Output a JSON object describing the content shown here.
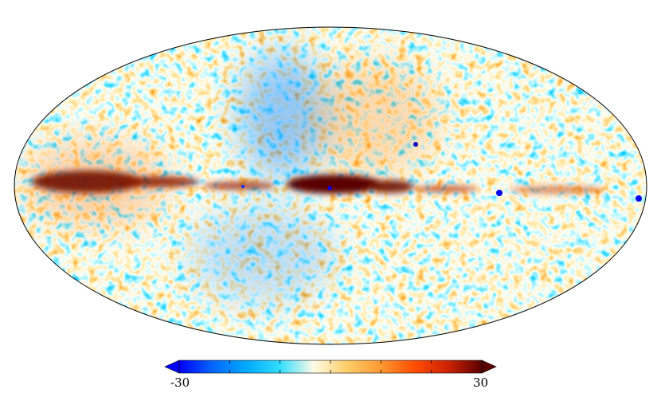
{
  "map": {
    "projection": "mollweide",
    "colorbar": {
      "min_label": "-30",
      "max_label": "30",
      "min": -30,
      "max": 30,
      "extend": "both",
      "tick_values": [
        -30,
        -20,
        -10,
        0,
        10,
        20,
        30
      ],
      "colors": [
        "#0000ff",
        "#0066ff",
        "#00aaff",
        "#33ddff",
        "#fffbe6",
        "#ffcc66",
        "#ff9933",
        "#ff4d00",
        "#cc2200",
        "#5a0000"
      ]
    },
    "feature_colors": {
      "outline": "#000000",
      "galactic_plane": "#6e0d00"
    }
  }
}
